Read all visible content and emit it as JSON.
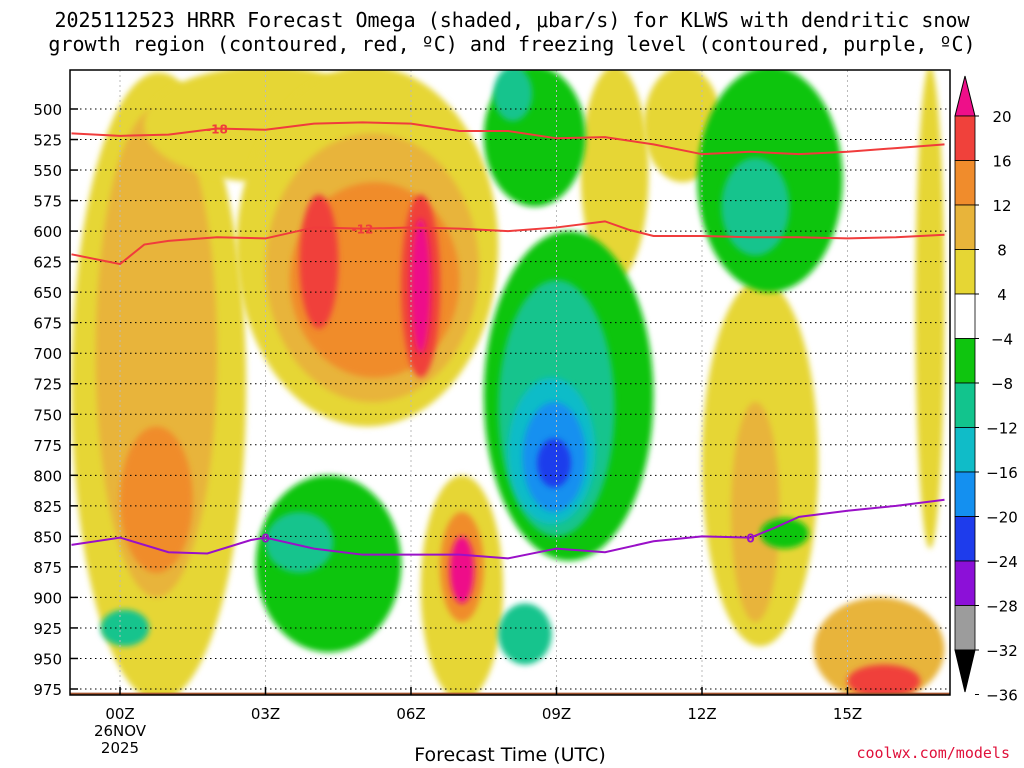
{
  "title": {
    "line1": "2025112523 HRRR Forecast Omega (shaded, μbar/s) for KLWS with dendritic snow",
    "line2": "growth region (contoured, red, ºC) and freezing level (contoured, purple, ºC)"
  },
  "credit": "coolwx.com/models",
  "chart_data": {
    "type": "heatmap",
    "xlabel": "Forecast Time (UTC)",
    "ylabel": "Pressure (mb)",
    "x_ticks": [
      {
        "hour": 0,
        "label": "00Z"
      },
      {
        "hour": 3,
        "label": "03Z"
      },
      {
        "hour": 6,
        "label": "06Z"
      },
      {
        "hour": 9,
        "label": "09Z"
      },
      {
        "hour": 12,
        "label": "12Z"
      },
      {
        "hour": 15,
        "label": "15Z"
      }
    ],
    "date_label": [
      "26NOV",
      "2025"
    ],
    "xlim": [
      -1,
      17
    ],
    "y_ticks": [
      500,
      525,
      550,
      575,
      600,
      625,
      650,
      675,
      700,
      725,
      750,
      775,
      800,
      825,
      850,
      875,
      900,
      925,
      950,
      975
    ],
    "ylim": [
      465,
      985
    ],
    "colorbar": {
      "levels": [
        "20",
        "16",
        "12",
        "8",
        "4",
        "−4",
        "−8",
        "−12",
        "−16",
        "−20",
        "−24",
        "−28",
        "−32",
        "−36"
      ],
      "colors": [
        "#ee0f89",
        "#f0413b",
        "#f08c2c",
        "#e8b43a",
        "#e6d634",
        "#ffffff",
        "#0fc50f",
        "#12c48d",
        "#10bcc8",
        "#1490f0",
        "#1e3cec",
        "#8c10d8",
        "#9c9c9c",
        "#000000"
      ]
    },
    "omega_cells": [
      {
        "name": "omega-warm-left-column",
        "t0": -1,
        "t1": 2.6,
        "p0": 470,
        "p1": 985,
        "value": 5
      },
      {
        "name": "omega-warm-left-core",
        "t0": -0.5,
        "t1": 2,
        "p0": 500,
        "p1": 900,
        "value": 9
      },
      {
        "name": "omega-warm-left-inner",
        "t0": 0,
        "t1": 1.5,
        "p0": 760,
        "p1": 880,
        "value": 13
      },
      {
        "name": "omega-warm-upper-band",
        "t0": 0.5,
        "t1": 5.5,
        "p0": 465,
        "p1": 560,
        "value": 5
      },
      {
        "name": "omega-warm-main-column",
        "t0": 2.4,
        "t1": 7.8,
        "p0": 465,
        "p1": 760,
        "value": 6
      },
      {
        "name": "omega-warm-main-core",
        "t0": 3,
        "t1": 7.4,
        "p0": 520,
        "p1": 740,
        "value": 10
      },
      {
        "name": "omega-warm-main-inner",
        "t0": 3.5,
        "t1": 7,
        "p0": 560,
        "p1": 720,
        "value": 14
      },
      {
        "name": "omega-warm-main-max1",
        "t0": 3.7,
        "t1": 4.5,
        "p0": 570,
        "p1": 680,
        "value": 18
      },
      {
        "name": "omega-warm-main-max2",
        "t0": 5.8,
        "t1": 6.6,
        "p0": 570,
        "p1": 720,
        "value": 18
      },
      {
        "name": "omega-warm-main-peak",
        "t0": 6,
        "t1": 6.4,
        "p0": 590,
        "p1": 700,
        "value": 22
      },
      {
        "name": "omega-warm-lower-column",
        "t0": 6.2,
        "t1": 7.9,
        "p0": 800,
        "p1": 985,
        "value": 7
      },
      {
        "name": "omega-warm-lower-core",
        "t0": 6.6,
        "t1": 7.5,
        "p0": 830,
        "p1": 920,
        "value": 14
      },
      {
        "name": "omega-warm-lower-peak",
        "t0": 6.8,
        "t1": 7.3,
        "p0": 850,
        "p1": 905,
        "value": 22
      },
      {
        "name": "omega-warm-upper-mid",
        "t0": 9.5,
        "t1": 10.9,
        "p0": 465,
        "p1": 640,
        "value": 6
      },
      {
        "name": "omega-warm-right-upper",
        "t0": 10.8,
        "t1": 12.4,
        "p0": 465,
        "p1": 560,
        "value": 6
      },
      {
        "name": "omega-warm-right-lower",
        "t0": 12,
        "t1": 14.4,
        "p0": 640,
        "p1": 940,
        "value": 6
      },
      {
        "name": "omega-warm-right-core",
        "t0": 12.6,
        "t1": 13.6,
        "p0": 740,
        "p1": 920,
        "value": 11
      },
      {
        "name": "omega-warm-far-right",
        "t0": 16.4,
        "t1": 17,
        "p0": 465,
        "p1": 860,
        "value": 7
      },
      {
        "name": "omega-warm-surface-right",
        "t0": 14.3,
        "t1": 17,
        "p0": 900,
        "p1": 985,
        "value": 8
      },
      {
        "name": "omega-warm-surface-peak",
        "t0": 15,
        "t1": 16.5,
        "p0": 955,
        "p1": 982,
        "value": 18
      },
      {
        "name": "omega-down-upper-green",
        "t0": 7.5,
        "t1": 9.6,
        "p0": 465,
        "p1": 580,
        "value": -6
      },
      {
        "name": "omega-down-upper-teal",
        "t0": 7.7,
        "t1": 8.5,
        "p0": 465,
        "p1": 510,
        "value": -10
      },
      {
        "name": "omega-down-mid-green",
        "t0": 7.5,
        "t1": 11,
        "p0": 600,
        "p1": 870,
        "value": -6
      },
      {
        "name": "omega-down-mid-teal",
        "t0": 7.8,
        "t1": 10.2,
        "p0": 640,
        "p1": 850,
        "value": -10
      },
      {
        "name": "omega-down-mid-cyan",
        "t0": 8,
        "t1": 9.8,
        "p0": 720,
        "p1": 840,
        "value": -14
      },
      {
        "name": "omega-down-mid-blue",
        "t0": 8.3,
        "t1": 9.6,
        "p0": 740,
        "p1": 830,
        "value": -18
      },
      {
        "name": "omega-down-mid-core",
        "t0": 8.6,
        "t1": 9.3,
        "p0": 770,
        "p1": 810,
        "value": -22
      },
      {
        "name": "omega-down-right-green",
        "t0": 11.9,
        "t1": 14.9,
        "p0": 465,
        "p1": 650,
        "value": -6
      },
      {
        "name": "omega-down-right-teal",
        "t0": 12.4,
        "t1": 13.8,
        "p0": 540,
        "p1": 620,
        "value": -10
      },
      {
        "name": "omega-down-low-green",
        "t0": 2.8,
        "t1": 5.8,
        "p0": 800,
        "p1": 945,
        "value": -6
      },
      {
        "name": "omega-down-low-teal",
        "t0": 3,
        "t1": 4.4,
        "p0": 830,
        "p1": 880,
        "value": -10
      },
      {
        "name": "omega-down-surface-left",
        "t0": -0.4,
        "t1": 0.6,
        "p0": 910,
        "p1": 940,
        "value": -8
      },
      {
        "name": "omega-down-surface-mid",
        "t0": 7.8,
        "t1": 8.9,
        "p0": 905,
        "p1": 955,
        "value": -10
      },
      {
        "name": "omega-down-low-right",
        "t0": 13.2,
        "t1": 14.2,
        "p0": 835,
        "p1": 860,
        "value": -6
      }
    ],
    "dendritic_contours": [
      {
        "label": "-18",
        "color": "#f03c3c",
        "points": [
          [
            -1,
            520
          ],
          [
            0,
            522
          ],
          [
            1,
            521
          ],
          [
            2,
            516
          ],
          [
            3,
            517
          ],
          [
            4,
            512
          ],
          [
            5,
            511
          ],
          [
            6,
            512
          ],
          [
            7,
            518
          ],
          [
            8,
            518
          ],
          [
            9,
            524
          ],
          [
            10,
            523
          ],
          [
            11,
            529
          ],
          [
            12,
            537
          ],
          [
            13,
            535
          ],
          [
            14,
            537
          ],
          [
            15,
            535
          ],
          [
            16,
            532
          ],
          [
            17,
            529
          ]
        ]
      },
      {
        "label": "-12",
        "color": "#f03c3c",
        "points": [
          [
            -1,
            619
          ],
          [
            0,
            627
          ],
          [
            0.5,
            611
          ],
          [
            1,
            608
          ],
          [
            2,
            605
          ],
          [
            3,
            606
          ],
          [
            4,
            597
          ],
          [
            5,
            598
          ],
          [
            6,
            597
          ],
          [
            7,
            598
          ],
          [
            8,
            600
          ],
          [
            9,
            597
          ],
          [
            10,
            592
          ],
          [
            10.5,
            599
          ],
          [
            11,
            604
          ],
          [
            12,
            604
          ],
          [
            13,
            605
          ],
          [
            14,
            605
          ],
          [
            15,
            606
          ],
          [
            16,
            605
          ],
          [
            17,
            603
          ]
        ]
      }
    ],
    "freezing_level": {
      "label": "0",
      "color": "#9a10c8",
      "points": [
        [
          -1,
          857
        ],
        [
          0,
          851
        ],
        [
          1,
          863
        ],
        [
          1.8,
          864
        ],
        [
          2.7,
          853
        ],
        [
          3,
          851
        ],
        [
          4,
          860
        ],
        [
          5,
          865
        ],
        [
          6,
          865
        ],
        [
          7,
          865
        ],
        [
          8,
          868
        ],
        [
          9,
          860
        ],
        [
          10,
          863
        ],
        [
          11,
          854
        ],
        [
          12,
          850
        ],
        [
          13,
          851
        ],
        [
          13.5,
          843
        ],
        [
          14,
          834
        ],
        [
          15,
          829
        ],
        [
          16,
          825
        ],
        [
          17,
          820
        ]
      ]
    },
    "ground": {
      "p0": 978,
      "color": "#a0522d"
    }
  }
}
